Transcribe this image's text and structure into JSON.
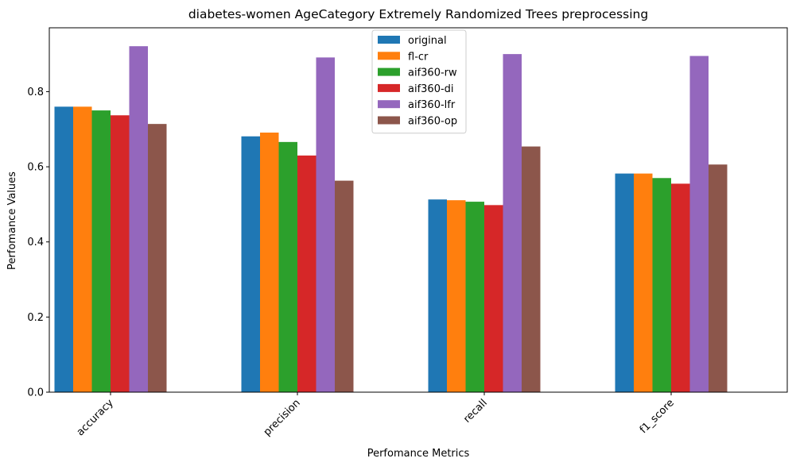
{
  "chart_data": {
    "type": "bar",
    "title": "diabetes-women AgeCategory Extremely Randomized Trees preprocessing",
    "xlabel": "Perfomance Metrics",
    "ylabel": "Perfomance Values",
    "categories": [
      "accuracy",
      "precision",
      "recall",
      "f1_score"
    ],
    "ylim": [
      0,
      0.97
    ],
    "yticks": [
      "0.0",
      "0.2",
      "0.4",
      "0.6",
      "0.8"
    ],
    "grid": false,
    "legend_position": "top-center",
    "series": [
      {
        "name": "original",
        "color": "#1f77b4",
        "values": [
          0.76,
          0.681,
          0.513,
          0.582
        ]
      },
      {
        "name": "fl-cr",
        "color": "#ff7f0e",
        "values": [
          0.76,
          0.691,
          0.511,
          0.582
        ]
      },
      {
        "name": "aif360-rw",
        "color": "#2ca02c",
        "values": [
          0.75,
          0.666,
          0.507,
          0.57
        ]
      },
      {
        "name": "aif360-di",
        "color": "#d62728",
        "values": [
          0.737,
          0.63,
          0.498,
          0.555
        ]
      },
      {
        "name": "aif360-lfr",
        "color": "#9467bd",
        "values": [
          0.921,
          0.891,
          0.9,
          0.895
        ]
      },
      {
        "name": "aif360-op",
        "color": "#8c564b",
        "values": [
          0.714,
          0.563,
          0.654,
          0.606
        ]
      }
    ]
  }
}
